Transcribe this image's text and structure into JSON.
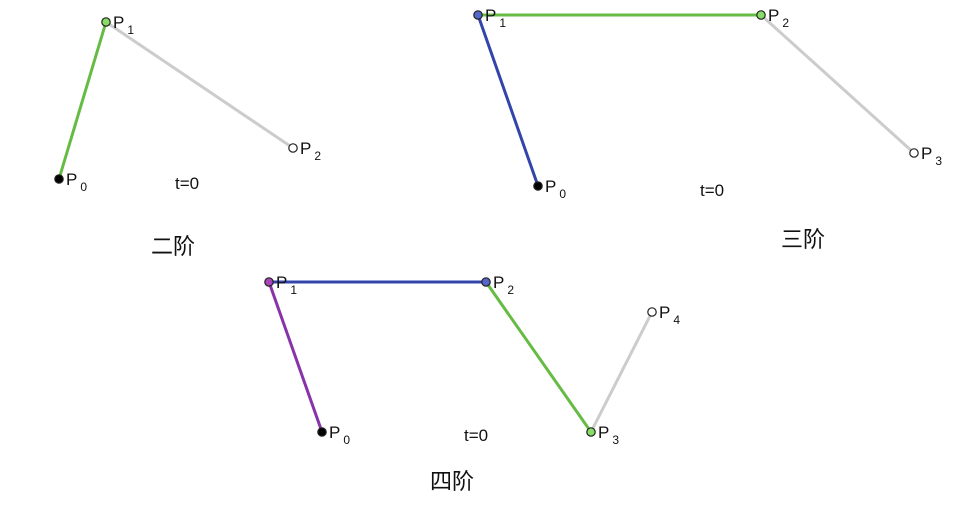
{
  "diagrams": [
    {
      "caption": "二阶",
      "t_label": "t=0",
      "points": [
        {
          "name": "P",
          "index": "0",
          "fill": "#000000"
        },
        {
          "name": "P",
          "index": "1",
          "fill": "#88dd66"
        },
        {
          "name": "P",
          "index": "2",
          "fill": "#ffffff"
        }
      ],
      "segments": [
        {
          "from": 0,
          "to": 1,
          "color": "#66bb44"
        },
        {
          "from": 1,
          "to": 2,
          "color": "#cccccc"
        }
      ]
    },
    {
      "caption": "三阶",
      "t_label": "t=0",
      "points": [
        {
          "name": "P",
          "index": "0",
          "fill": "#000000"
        },
        {
          "name": "P",
          "index": "1",
          "fill": "#5566cc"
        },
        {
          "name": "P",
          "index": "2",
          "fill": "#88dd66"
        },
        {
          "name": "P",
          "index": "3",
          "fill": "#ffffff"
        }
      ],
      "segments": [
        {
          "from": 0,
          "to": 1,
          "color": "#3344aa"
        },
        {
          "from": 1,
          "to": 2,
          "color": "#66bb44"
        },
        {
          "from": 2,
          "to": 3,
          "color": "#cccccc"
        }
      ]
    },
    {
      "caption": "四阶",
      "t_label": "t=0",
      "points": [
        {
          "name": "P",
          "index": "0",
          "fill": "#000000"
        },
        {
          "name": "P",
          "index": "1",
          "fill": "#aa44bb"
        },
        {
          "name": "P",
          "index": "2",
          "fill": "#5566cc"
        },
        {
          "name": "P",
          "index": "3",
          "fill": "#88dd66"
        },
        {
          "name": "P",
          "index": "4",
          "fill": "#ffffff"
        }
      ],
      "segments": [
        {
          "from": 0,
          "to": 1,
          "color": "#8833aa"
        },
        {
          "from": 1,
          "to": 2,
          "color": "#3344aa"
        },
        {
          "from": 2,
          "to": 3,
          "color": "#66bb44"
        },
        {
          "from": 3,
          "to": 4,
          "color": "#cccccc"
        }
      ]
    }
  ]
}
